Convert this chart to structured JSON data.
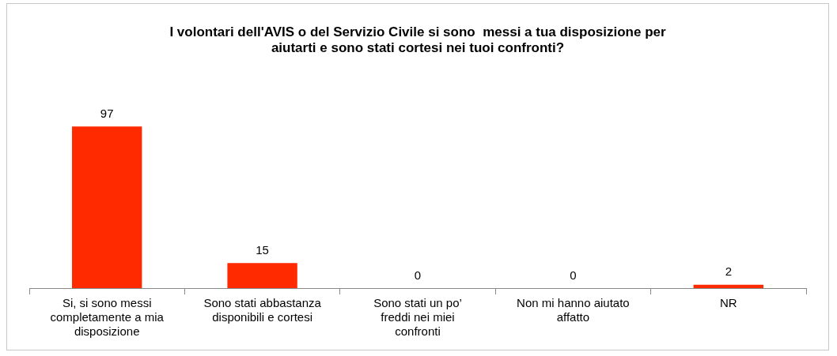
{
  "chart_data": {
    "type": "bar",
    "title": "I volontari dell'AVIS o del Servizio Civile si sono  messi a tua disposizione per aiutarti e sono stati cortesi nei tuoi confronti?",
    "categories": [
      "Si, si sono messi completamente a mia disposizione",
      "Sono stati abbastanza disponibili e cortesi",
      "Sono stati un po’ freddi nei miei confronti",
      "Non mi hanno aiutato affatto",
      "NR"
    ],
    "values": [
      97,
      15,
      0,
      0,
      2
    ],
    "color": "#ff2a00",
    "data_labels": true,
    "grid": false,
    "legend": false
  }
}
